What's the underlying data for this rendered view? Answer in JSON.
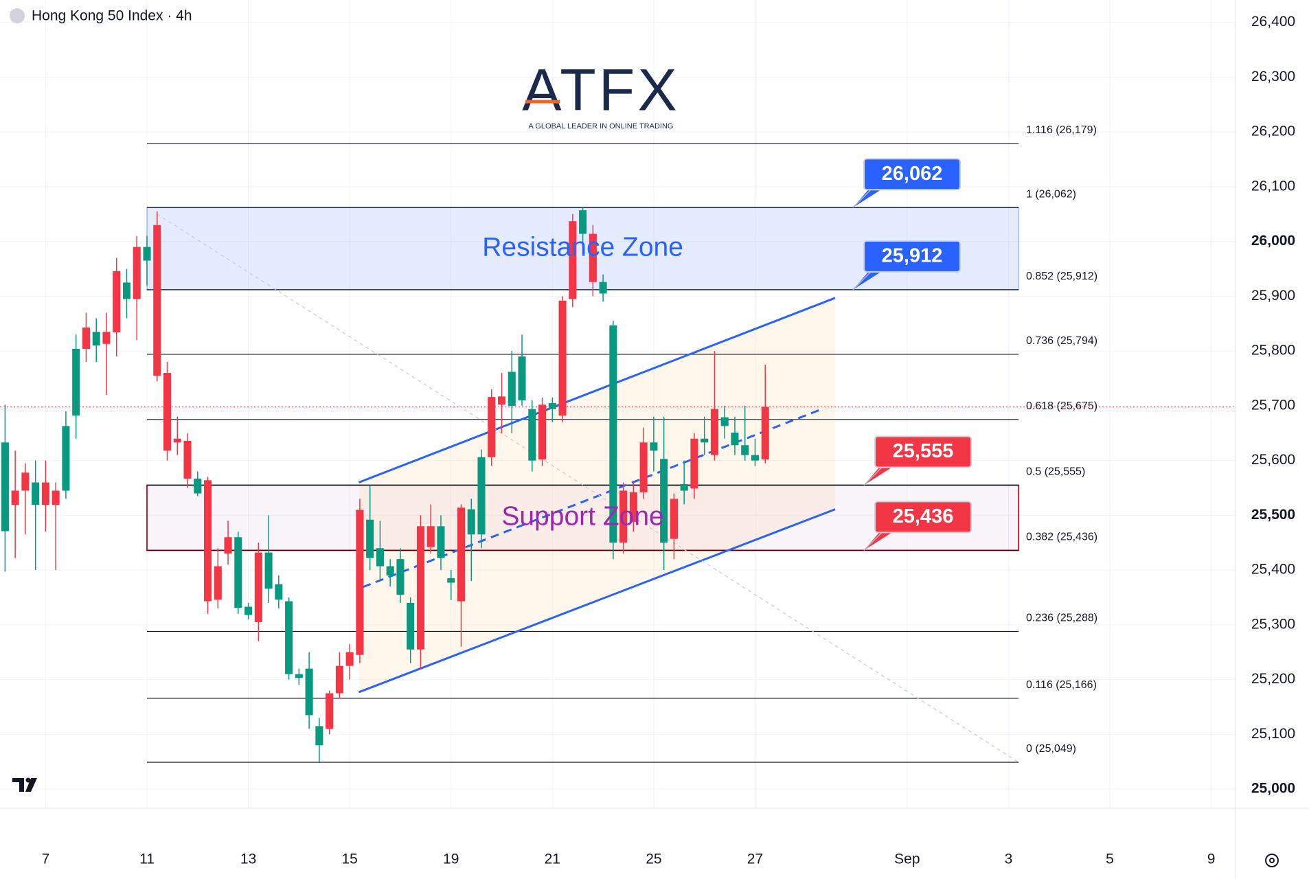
{
  "chart_data": {
    "type": "candlestick",
    "title": "Hong Kong 50 Index · 4h",
    "logo": {
      "text": "ATFX",
      "tagline": "A GLOBAL LEADER IN ONLINE TRADING"
    },
    "up_color": "#089981",
    "down_color": "#f23645",
    "open": [
      25471,
      25545,
      25578,
      25519,
      25560,
      25545,
      25545,
      25682,
      25843,
      25810,
      25835,
      25946,
      25895,
      25990,
      25965,
      26030,
      25760,
      25640,
      25636,
      25540,
      25564,
      25407,
      25460,
      25331,
      25318,
      25432,
      25366,
      25346,
      25210,
      25203,
      25135,
      25080,
      25175,
      25225,
      25250,
      25510,
      25422,
      25407,
      25390,
      25355,
      25255,
      25480,
      25480,
      25422,
      25377,
      25514,
      25465,
      25465,
      25716,
      25717,
      25700,
      25710,
      25600,
      25702,
      25694,
      25892,
      26037,
      26014,
      26014,
      25905,
      25450,
      25545,
      25542,
      25633,
      25618,
      25450,
      25530,
      25545,
      25640,
      25633,
      25694,
      25663,
      25628,
      25610,
      25600,
      25698
    ],
    "high": [
      25702,
      25618,
      25595,
      25600,
      25600,
      25560,
      25690,
      25830,
      25870,
      25860,
      25870,
      25970,
      25950,
      26010,
      26010,
      26055,
      25780,
      25680,
      25650,
      25580,
      25570,
      25440,
      25490,
      25470,
      25340,
      25450,
      25500,
      25390,
      25350,
      25220,
      25250,
      25130,
      25180,
      25250,
      25265,
      25530,
      25555,
      25490,
      25420,
      25440,
      25350,
      25500,
      25520,
      25500,
      25400,
      25520,
      25530,
      25620,
      25730,
      25760,
      25800,
      25830,
      25710,
      25715,
      25715,
      25900,
      26050,
      26062,
      26030,
      25940,
      25855,
      25560,
      25560,
      25660,
      25680,
      25680,
      25540,
      25600,
      25650,
      25680,
      25800,
      25700,
      25680,
      25700,
      25640,
      25775
    ],
    "low": [
      25397,
      25422,
      25465,
      25400,
      25470,
      25400,
      25530,
      25640,
      25780,
      25780,
      25720,
      25790,
      25860,
      25820,
      25920,
      25745,
      25600,
      25610,
      25550,
      25535,
      25320,
      25330,
      25410,
      25320,
      25310,
      25270,
      25340,
      25330,
      25200,
      25190,
      25110,
      25049,
      25100,
      25165,
      25200,
      25230,
      25400,
      25380,
      25370,
      25340,
      25230,
      25220,
      25430,
      25400,
      25345,
      25260,
      25380,
      25440,
      25590,
      25650,
      25650,
      25700,
      25580,
      25590,
      25670,
      25670,
      25880,
      25990,
      25900,
      25890,
      25420,
      25430,
      25470,
      25530,
      25580,
      25400,
      25420,
      25520,
      25530,
      25610,
      25600,
      25640,
      25610,
      25600,
      25590,
      25595
    ],
    "close": [
      25633,
      25519,
      25545,
      25560,
      25519,
      25519,
      25663,
      25804,
      25804,
      25835,
      25813,
      25834,
      25925,
      25895,
      25990,
      25755,
      25618,
      25633,
      25567,
      25567,
      25343,
      25346,
      25430,
      25460,
      25333,
      25305,
      25432,
      25374,
      25343,
      25210,
      25220,
      25115,
      25110,
      25175,
      25225,
      25245,
      25492,
      25440,
      25407,
      25420,
      25340,
      25255,
      25442,
      25480,
      25385,
      25343,
      25511,
      25606,
      25606,
      25702,
      25762,
      25790,
      25694,
      25602,
      25705,
      25682,
      25895,
      26057,
      25926,
      25926,
      25847,
      25450,
      25488,
      25542,
      25633,
      25603,
      25457,
      25557,
      25549,
      25640,
      25610,
      25679,
      25651,
      25628,
      25610,
      25602
    ],
    "xlim": [
      -0.5,
      121.4
    ],
    "xticks": [
      {
        "value": 4,
        "label": "7"
      },
      {
        "value": 14,
        "label": "11"
      },
      {
        "value": 24,
        "label": "13"
      },
      {
        "value": 34,
        "label": "15"
      },
      {
        "value": 44,
        "label": "19"
      },
      {
        "value": 54,
        "label": "21"
      },
      {
        "value": 64,
        "label": "25"
      },
      {
        "value": 74,
        "label": "27"
      },
      {
        "value": 89,
        "label": "Sep"
      },
      {
        "value": 99,
        "label": "3"
      },
      {
        "value": 109,
        "label": "5"
      },
      {
        "value": 119,
        "label": "9"
      }
    ],
    "ylim": [
      24965,
      26441
    ],
    "yticks": [
      {
        "value": 25000,
        "label": "25,000"
      },
      {
        "value": 25100,
        "label": "25,100"
      },
      {
        "value": 25200,
        "label": "25,200"
      },
      {
        "value": 25300,
        "label": "25,300"
      },
      {
        "value": 25400,
        "label": "25,400"
      },
      {
        "value": 25500,
        "label": "25,500"
      },
      {
        "value": 25600,
        "label": "25,600"
      },
      {
        "value": 25700,
        "label": "25,700"
      },
      {
        "value": 25800,
        "label": "25,800"
      },
      {
        "value": 25900,
        "label": "25,900"
      },
      {
        "value": 26000,
        "label": "26,000"
      },
      {
        "value": 26100,
        "label": "26,100"
      },
      {
        "value": 26200,
        "label": "26,200"
      },
      {
        "value": 26300,
        "label": "26,300"
      },
      {
        "value": 26400,
        "label": "26,400"
      }
    ],
    "grid": true,
    "price_line": 25698,
    "fib_span": [
      14,
      100
    ],
    "fib_levels": [
      {
        "value": 26179,
        "label": "1.116 (26,179)"
      },
      {
        "value": 26062,
        "label": "1 (26,062)"
      },
      {
        "value": 25912,
        "label": "0.852 (25,912)"
      },
      {
        "value": 25794,
        "label": "0.736 (25,794)"
      },
      {
        "value": 25675,
        "label": "0.618 (25,675)"
      },
      {
        "value": 25555,
        "label": "0.5 (25,555)"
      },
      {
        "value": 25436,
        "label": "0.382 (25,436)"
      },
      {
        "value": 25288,
        "label": "0.236 (25,288)"
      },
      {
        "value": 25166,
        "label": "0.116 (25,166)"
      },
      {
        "value": 25049,
        "label": "0 (25,049)"
      }
    ],
    "zones": [
      {
        "label": "Resistance Zone",
        "low": 25912,
        "high": 26062,
        "color": "#2962ff"
      },
      {
        "label": "Support Zone",
        "low": 25436,
        "high": 25555,
        "color": "#9c27b0"
      }
    ],
    "callouts": [
      {
        "value": 26062,
        "label": "26,062",
        "color": "#2962ff"
      },
      {
        "value": 25912,
        "label": "25,912",
        "color": "#2962ff"
      },
      {
        "value": 25555,
        "label": "25,555",
        "color": "#f23645"
      },
      {
        "value": 25436,
        "label": "25,436",
        "color": "#f23645"
      }
    ],
    "trendlines": [
      {
        "x": [
          34.9,
          81.9
        ],
        "y": [
          25560,
          25897
        ],
        "color": "#2962ff",
        "dash": false
      },
      {
        "x": [
          34.9,
          81.9
        ],
        "y": [
          25177,
          25511
        ],
        "color": "#2962ff",
        "dash": false
      },
      {
        "x": [
          35.3,
          80.6
        ],
        "y": [
          25369,
          25694
        ],
        "color": "#2962ff",
        "dash": true
      },
      {
        "x": [
          15,
          100
        ],
        "y": [
          26050,
          25049
        ],
        "color": "#c8cbd4",
        "dash": true
      }
    ]
  }
}
